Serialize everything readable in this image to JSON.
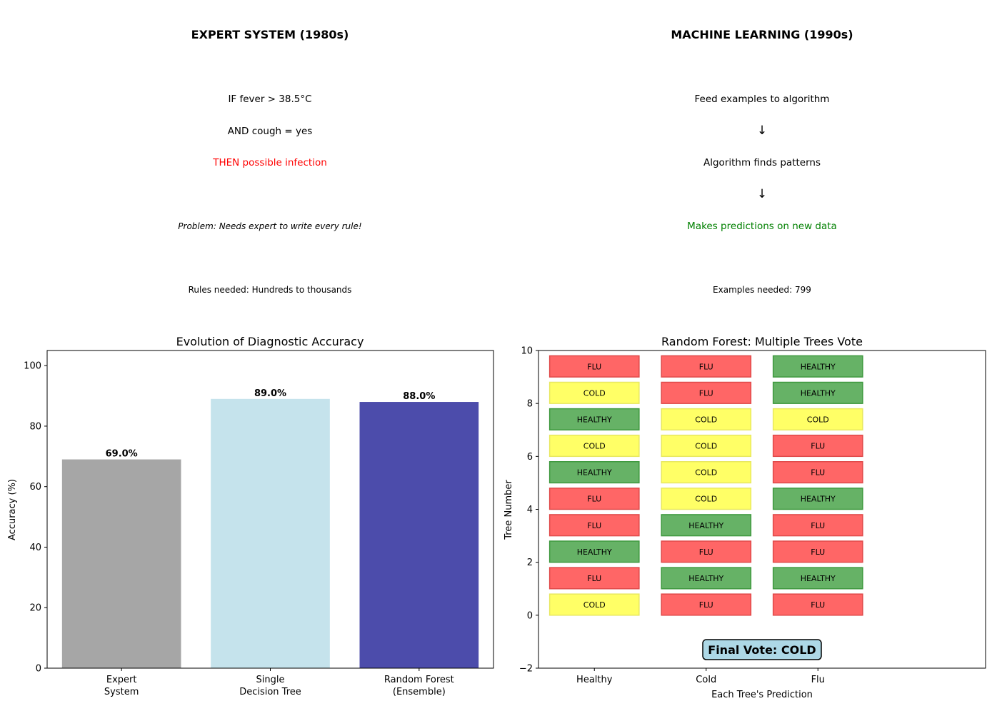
{
  "panels": {
    "expert": {
      "title": "EXPERT SYSTEM (1980s)",
      "lines": [
        "IF fever > 38.5°C",
        "AND cough = yes",
        "THEN possible infection"
      ],
      "problem": "Problem: Needs expert to write every rule!",
      "footer": "Rules needed: Hundreds to thousands"
    },
    "ml": {
      "title": "MACHINE LEARNING (1990s)",
      "lines": [
        "Feed examples to algorithm",
        "↓",
        "Algorithm finds patterns",
        "↓",
        "Makes predictions on new data"
      ],
      "footer": "Examples needed: 799"
    }
  },
  "colors": {
    "red": "#ff0000",
    "green": "#008000",
    "flu": "#ff6666",
    "flu_edge": "#e04a4a",
    "cold": "#ffff66",
    "cold_edge": "#e8e860",
    "healthy": "#66b266",
    "healthy_edge": "#3f993f",
    "final_box": "#add8e6"
  },
  "chart_data": [
    {
      "type": "bar",
      "title": "Evolution of Diagnostic Accuracy",
      "xlabel": "",
      "ylabel": "Accuracy (%)",
      "categories": [
        "Expert\nSystem",
        "Single\nDecision Tree",
        "Random Forest\n(Ensemble)"
      ],
      "values": [
        69.0,
        89.0,
        88.0
      ],
      "value_labels": [
        "69.0%",
        "89.0%",
        "88.0%"
      ],
      "colors": [
        "#a6a6a6",
        "#c5e3ec",
        "#4c4cab"
      ],
      "ylim": [
        0,
        105
      ],
      "yticks": [
        0,
        20,
        40,
        60,
        80,
        100
      ],
      "grid": false
    },
    {
      "type": "table",
      "title": "Random Forest: Multiple Trees Vote",
      "xlabel": "Each Tree's Prediction",
      "ylabel": "Tree Number",
      "columns": [
        "Healthy",
        "Cold",
        "Flu"
      ],
      "xlim": [
        -0.5,
        3.5
      ],
      "ylim": [
        -2,
        10
      ],
      "yticks": [
        -2,
        0,
        2,
        4,
        6,
        8,
        10
      ],
      "trees": [
        {
          "tree": 0,
          "votes": [
            "COLD",
            "FLU",
            "FLU"
          ]
        },
        {
          "tree": 1,
          "votes": [
            "FLU",
            "HEALTHY",
            "HEALTHY"
          ]
        },
        {
          "tree": 2,
          "votes": [
            "HEALTHY",
            "FLU",
            "FLU"
          ]
        },
        {
          "tree": 3,
          "votes": [
            "FLU",
            "HEALTHY",
            "FLU"
          ]
        },
        {
          "tree": 4,
          "votes": [
            "FLU",
            "COLD",
            "HEALTHY"
          ]
        },
        {
          "tree": 5,
          "votes": [
            "HEALTHY",
            "COLD",
            "FLU"
          ]
        },
        {
          "tree": 6,
          "votes": [
            "COLD",
            "COLD",
            "FLU"
          ]
        },
        {
          "tree": 7,
          "votes": [
            "HEALTHY",
            "COLD",
            "COLD"
          ]
        },
        {
          "tree": 8,
          "votes": [
            "COLD",
            "FLU",
            "HEALTHY"
          ]
        },
        {
          "tree": 9,
          "votes": [
            "FLU",
            "FLU",
            "HEALTHY"
          ]
        }
      ],
      "final_vote": "Final Vote: COLD",
      "grid": false
    }
  ]
}
